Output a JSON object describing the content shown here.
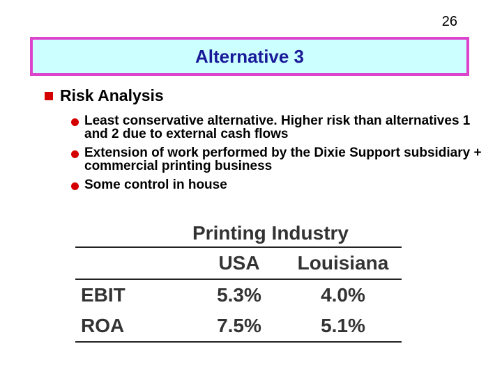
{
  "page_number": "26",
  "title": "Alternative 3",
  "section": "Risk Analysis",
  "bullets": [
    "Least conservative alternative. Higher risk than alternatives 1 and 2 due to external cash flows",
    "Extension of work performed by the Dixie Support subsidiary + commercial printing business",
    "Some control in house"
  ],
  "table": {
    "header": "Printing Industry",
    "columns": [
      "",
      "USA",
      "Louisiana"
    ],
    "rows": [
      {
        "label": "EBIT",
        "usa": "5.3%",
        "louisiana": "4.0%"
      },
      {
        "label": "ROA",
        "usa": "7.5%",
        "louisiana": "5.1%"
      }
    ]
  },
  "colors": {
    "title_bg": "#ccffff",
    "title_border": "#dd44cc",
    "title_text": "#1a1a99",
    "bullet": "#d40000"
  }
}
